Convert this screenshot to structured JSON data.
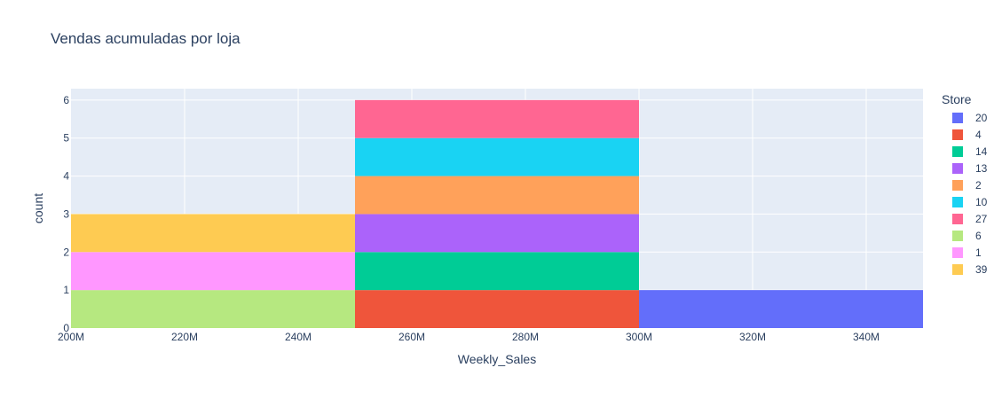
{
  "chart_data": {
    "type": "histogram",
    "title": "Vendas acumuladas por loja",
    "xlabel": "Weekly_Sales",
    "ylabel": "count",
    "xlim": [
      200,
      350
    ],
    "ylim": [
      0,
      6.3
    ],
    "x_ticks": [
      {
        "value": 200,
        "label": "200M"
      },
      {
        "value": 220,
        "label": "220M"
      },
      {
        "value": 240,
        "label": "240M"
      },
      {
        "value": 260,
        "label": "260M"
      },
      {
        "value": 280,
        "label": "280M"
      },
      {
        "value": 300,
        "label": "300M"
      },
      {
        "value": 320,
        "label": "320M"
      },
      {
        "value": 340,
        "label": "340M"
      }
    ],
    "y_ticks": [
      0,
      1,
      2,
      3,
      4,
      5,
      6
    ],
    "bins": [
      [
        200,
        250
      ],
      [
        250,
        300
      ],
      [
        300,
        350
      ]
    ],
    "legend_title": "Store",
    "legend_position": "right",
    "grid": true,
    "series": [
      {
        "name": "20",
        "color": "#636efa",
        "counts": [
          0,
          0,
          1
        ]
      },
      {
        "name": "4",
        "color": "#EF553B",
        "counts": [
          0,
          1,
          0
        ]
      },
      {
        "name": "14",
        "color": "#00cc96",
        "counts": [
          0,
          1,
          0
        ]
      },
      {
        "name": "13",
        "color": "#ab63fa",
        "counts": [
          0,
          1,
          0
        ]
      },
      {
        "name": "2",
        "color": "#FFA15A",
        "counts": [
          0,
          1,
          0
        ]
      },
      {
        "name": "10",
        "color": "#19d3f3",
        "counts": [
          0,
          1,
          0
        ]
      },
      {
        "name": "27",
        "color": "#FF6692",
        "counts": [
          0,
          1,
          0
        ]
      },
      {
        "name": "6",
        "color": "#B6E880",
        "counts": [
          1,
          0,
          0
        ]
      },
      {
        "name": "1",
        "color": "#FF97FF",
        "counts": [
          1,
          0,
          0
        ]
      },
      {
        "name": "39",
        "color": "#FECB52",
        "counts": [
          1,
          0,
          0
        ]
      }
    ]
  }
}
